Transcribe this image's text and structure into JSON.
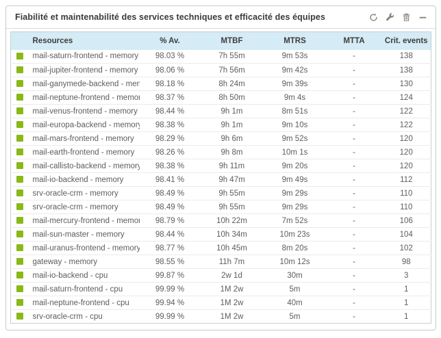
{
  "widget": {
    "title": "Fiabilité et maintenabilité des services techniques et efficacité des équipes",
    "toolbar": {
      "icons": [
        "refresh-icon",
        "wrench-icon",
        "trash-icon",
        "collapse-icon"
      ]
    }
  },
  "colors": {
    "status_ok": "#88b917",
    "header_bg": "#d5ebf5",
    "icon_gray": "#8b8477",
    "row_text": "#5d5d5d"
  },
  "table": {
    "columns": [
      "Resources",
      "% Av.",
      "MTBF",
      "MTRS",
      "MTTA",
      "Crit. events"
    ],
    "rows": [
      {
        "status": "ok",
        "resource": "mail-saturn-frontend - memory",
        "av": "98.03 %",
        "mtbf": "7h 55m",
        "mtrs": "9m 53s",
        "mtta": "-",
        "crit": "138"
      },
      {
        "status": "ok",
        "resource": "mail-jupiter-frontend - memory",
        "av": "98.06 %",
        "mtbf": "7h 56m",
        "mtrs": "9m 42s",
        "mtta": "-",
        "crit": "138"
      },
      {
        "status": "ok",
        "resource": "mail-ganymede-backend - memory",
        "av": "98.18 %",
        "mtbf": "8h 24m",
        "mtrs": "9m 39s",
        "mtta": "-",
        "crit": "130"
      },
      {
        "status": "ok",
        "resource": "mail-neptune-frontend - memory",
        "av": "98.37 %",
        "mtbf": "8h 50m",
        "mtrs": "9m 4s",
        "mtta": "-",
        "crit": "124"
      },
      {
        "status": "ok",
        "resource": "mail-venus-frontend - memory",
        "av": "98.44 %",
        "mtbf": "9h 1m",
        "mtrs": "8m 51s",
        "mtta": "-",
        "crit": "122"
      },
      {
        "status": "ok",
        "resource": "mail-europa-backend - memory",
        "av": "98.38 %",
        "mtbf": "9h 1m",
        "mtrs": "9m 10s",
        "mtta": "-",
        "crit": "122"
      },
      {
        "status": "ok",
        "resource": "mail-mars-frontend - memory",
        "av": "98.29 %",
        "mtbf": "9h 6m",
        "mtrs": "9m 52s",
        "mtta": "-",
        "crit": "120"
      },
      {
        "status": "ok",
        "resource": "mail-earth-frontend - memory",
        "av": "98.26 %",
        "mtbf": "9h 8m",
        "mtrs": "10m 1s",
        "mtta": "-",
        "crit": "120"
      },
      {
        "status": "ok",
        "resource": "mail-callisto-backend - memory",
        "av": "98.38 %",
        "mtbf": "9h 11m",
        "mtrs": "9m 20s",
        "mtta": "-",
        "crit": "120"
      },
      {
        "status": "ok",
        "resource": "mail-io-backend - memory",
        "av": "98.41 %",
        "mtbf": "9h 47m",
        "mtrs": "9m 49s",
        "mtta": "-",
        "crit": "112"
      },
      {
        "status": "ok",
        "resource": "srv-oracle-crm - memory",
        "av": "98.49 %",
        "mtbf": "9h 55m",
        "mtrs": "9m 29s",
        "mtta": "-",
        "crit": "110"
      },
      {
        "status": "ok",
        "resource": "srv-oracle-crm - memory",
        "av": "98.49 %",
        "mtbf": "9h 55m",
        "mtrs": "9m 29s",
        "mtta": "-",
        "crit": "110"
      },
      {
        "status": "ok",
        "resource": "mail-mercury-frontend - memory",
        "av": "98.79 %",
        "mtbf": "10h 22m",
        "mtrs": "7m 52s",
        "mtta": "-",
        "crit": "106"
      },
      {
        "status": "ok",
        "resource": "mail-sun-master - memory",
        "av": "98.44 %",
        "mtbf": "10h 34m",
        "mtrs": "10m 23s",
        "mtta": "-",
        "crit": "104"
      },
      {
        "status": "ok",
        "resource": "mail-uranus-frontend - memory",
        "av": "98.77 %",
        "mtbf": "10h 45m",
        "mtrs": "8m 20s",
        "mtta": "-",
        "crit": "102"
      },
      {
        "status": "ok",
        "resource": "gateway - memory",
        "av": "98.55 %",
        "mtbf": "11h 7m",
        "mtrs": "10m 12s",
        "mtta": "-",
        "crit": "98"
      },
      {
        "status": "ok",
        "resource": "mail-io-backend - cpu",
        "av": "99.87 %",
        "mtbf": "2w 1d",
        "mtrs": "30m",
        "mtta": "-",
        "crit": "3"
      },
      {
        "status": "ok",
        "resource": "mail-saturn-frontend - cpu",
        "av": "99.99 %",
        "mtbf": "1M 2w",
        "mtrs": "5m",
        "mtta": "-",
        "crit": "1"
      },
      {
        "status": "ok",
        "resource": "mail-neptune-frontend - cpu",
        "av": "99.94 %",
        "mtbf": "1M 2w",
        "mtrs": "40m",
        "mtta": "-",
        "crit": "1"
      },
      {
        "status": "ok",
        "resource": "srv-oracle-crm - cpu",
        "av": "99.99 %",
        "mtbf": "1M 2w",
        "mtrs": "5m",
        "mtta": "-",
        "crit": "1"
      }
    ]
  }
}
